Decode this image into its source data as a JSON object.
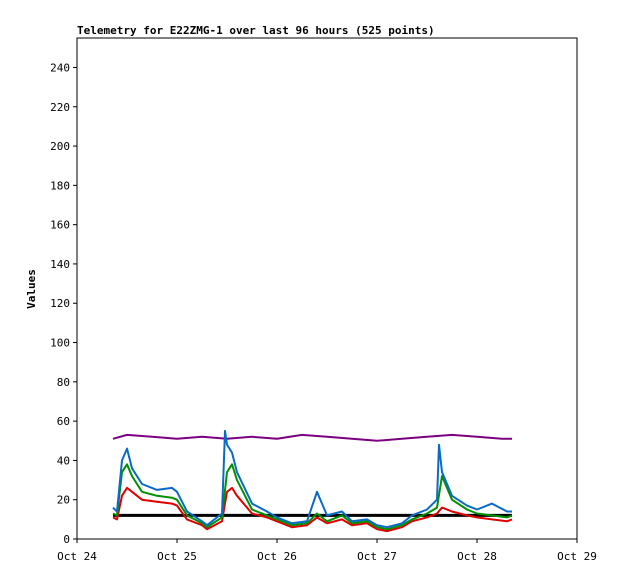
{
  "chart_data": {
    "type": "line",
    "title": "Telemetry for E22ZMG-1 over last 96 hours (525 points)",
    "xlabel": "",
    "ylabel": "Values",
    "ylim": [
      0,
      255
    ],
    "yticks": [
      0,
      20,
      40,
      60,
      80,
      100,
      120,
      140,
      160,
      180,
      200,
      220,
      240
    ],
    "xlim": [
      "Oct 24",
      "Oct 29"
    ],
    "xticks": [
      "Oct 24",
      "Oct 25",
      "Oct 26",
      "Oct 27",
      "Oct 28",
      "Oct 29"
    ],
    "x_unit": "days since Oct 24 00:00",
    "grid": false,
    "legend": "none",
    "series": [
      {
        "color": "#7b0080",
        "x": [
          0.36,
          0.5,
          0.75,
          1.0,
          1.25,
          1.5,
          1.75,
          2.0,
          2.25,
          2.5,
          2.75,
          3.0,
          3.25,
          3.5,
          3.75,
          4.0,
          4.25,
          4.35
        ],
        "y": [
          51,
          53,
          52,
          51,
          52,
          51,
          52,
          51,
          53,
          52,
          51,
          50,
          51,
          52,
          53,
          52,
          51,
          51
        ]
      },
      {
        "color": "#000000",
        "x": [
          0.36,
          0.5,
          0.75,
          1.0,
          1.25,
          1.5,
          1.75,
          2.0,
          2.25,
          2.5,
          2.75,
          3.0,
          3.25,
          3.5,
          3.75,
          4.0,
          4.25,
          4.35
        ],
        "y": [
          12,
          12,
          12,
          12,
          12,
          12,
          12,
          12,
          12,
          12,
          12,
          12,
          12,
          12,
          12,
          12,
          12,
          12
        ]
      },
      {
        "color": "#e00000",
        "x": [
          0.36,
          0.4,
          0.45,
          0.5,
          0.55,
          0.65,
          0.8,
          0.95,
          1.0,
          1.1,
          1.25,
          1.3,
          1.45,
          1.5,
          1.55,
          1.6,
          1.75,
          1.9,
          2.0,
          2.15,
          2.3,
          2.4,
          2.5,
          2.65,
          2.75,
          2.9,
          3.0,
          3.1,
          3.25,
          3.35,
          3.5,
          3.6,
          3.65,
          3.75,
          3.9,
          4.0,
          4.15,
          4.3,
          4.35
        ],
        "y": [
          11,
          10,
          22,
          26,
          24,
          20,
          19,
          18,
          17,
          10,
          7,
          5,
          9,
          24,
          26,
          22,
          13,
          11,
          9,
          6,
          7,
          11,
          8,
          10,
          7,
          8,
          5,
          4,
          6,
          9,
          11,
          13,
          16,
          14,
          12,
          11,
          10,
          9,
          10
        ]
      },
      {
        "color": "#009000",
        "x": [
          0.36,
          0.4,
          0.45,
          0.5,
          0.55,
          0.65,
          0.8,
          0.95,
          1.0,
          1.1,
          1.25,
          1.3,
          1.45,
          1.5,
          1.55,
          1.6,
          1.75,
          1.9,
          2.0,
          2.15,
          2.3,
          2.4,
          2.5,
          2.65,
          2.75,
          2.9,
          3.0,
          3.1,
          3.25,
          3.35,
          3.5,
          3.6,
          3.65,
          3.75,
          3.9,
          4.0,
          4.15,
          4.3,
          4.35
        ],
        "y": [
          13,
          12,
          34,
          38,
          32,
          24,
          22,
          21,
          20,
          12,
          8,
          6,
          11,
          34,
          38,
          30,
          15,
          12,
          10,
          7,
          8,
          13,
          9,
          12,
          8,
          9,
          6,
          5,
          7,
          10,
          13,
          16,
          32,
          20,
          15,
          13,
          12,
          11,
          12
        ]
      },
      {
        "color": "#0a6ac8",
        "x": [
          0.36,
          0.4,
          0.45,
          0.5,
          0.55,
          0.65,
          0.8,
          0.95,
          1.0,
          1.1,
          1.25,
          1.3,
          1.45,
          1.48,
          1.5,
          1.55,
          1.6,
          1.75,
          1.9,
          2.0,
          2.15,
          2.3,
          2.4,
          2.5,
          2.65,
          2.75,
          2.9,
          3.0,
          3.1,
          3.25,
          3.35,
          3.5,
          3.6,
          3.62,
          3.65,
          3.75,
          3.9,
          4.0,
          4.15,
          4.3,
          4.35
        ],
        "y": [
          16,
          14,
          40,
          46,
          36,
          28,
          25,
          26,
          24,
          14,
          9,
          7,
          13,
          55,
          48,
          44,
          34,
          18,
          14,
          11,
          8,
          9,
          24,
          12,
          14,
          9,
          10,
          7,
          6,
          8,
          12,
          15,
          20,
          48,
          34,
          22,
          17,
          15,
          18,
          14,
          14
        ]
      }
    ]
  }
}
